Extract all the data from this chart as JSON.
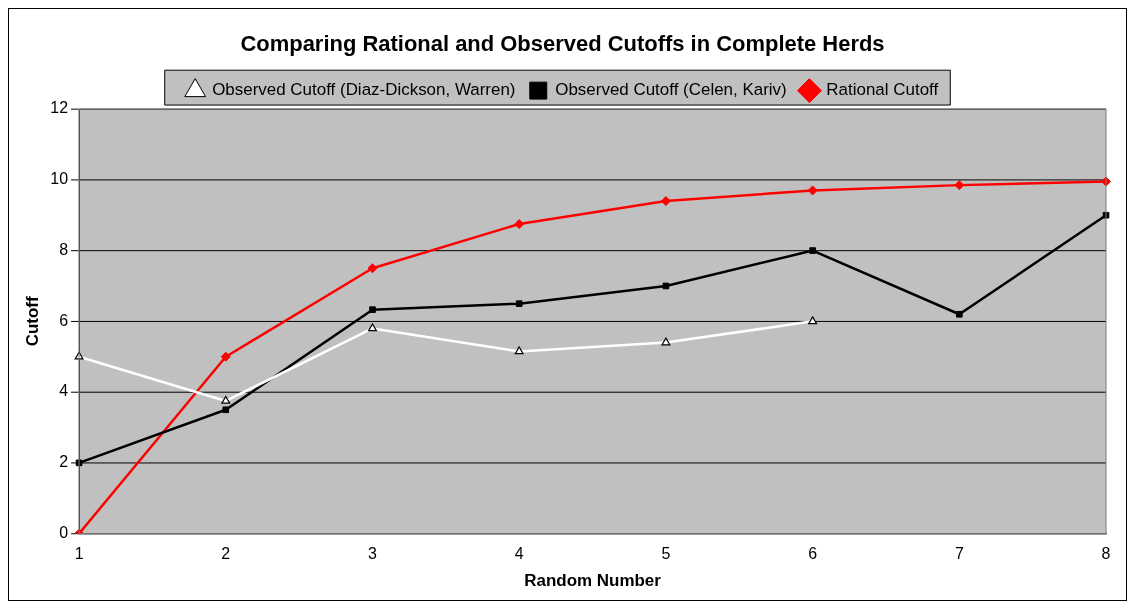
{
  "chart_data": {
    "type": "line",
    "title": "Comparing Rational and Observed Cutoffs in Complete Herds",
    "xlabel": "Random Number",
    "ylabel": "Cutoff",
    "categories": [
      "1",
      "2",
      "3",
      "4",
      "5",
      "6",
      "7",
      "8"
    ],
    "series": [
      {
        "name": "Observed Cutoff (Diaz-Dickson, Warren)",
        "color": "#ffffff",
        "marker": "triangle",
        "values": [
          5,
          3.75,
          5.8,
          5.15,
          5.4,
          6,
          null,
          null
        ]
      },
      {
        "name": "Observed Cutoff (Celen, Kariv)",
        "color": "#000000",
        "marker": "square",
        "values": [
          2,
          3.5,
          6.33,
          6.5,
          7,
          8,
          6.2,
          9
        ]
      },
      {
        "name": "Rational Cutoff",
        "color": "#ff0000",
        "marker": "diamond",
        "values": [
          0,
          5,
          7.5,
          8.75,
          9.4,
          9.7,
          9.85,
          9.95
        ]
      }
    ],
    "ylim": [
      0,
      12
    ],
    "yticks": [
      0,
      2,
      4,
      6,
      8,
      10,
      12
    ],
    "grid": "y",
    "legend": "top"
  }
}
